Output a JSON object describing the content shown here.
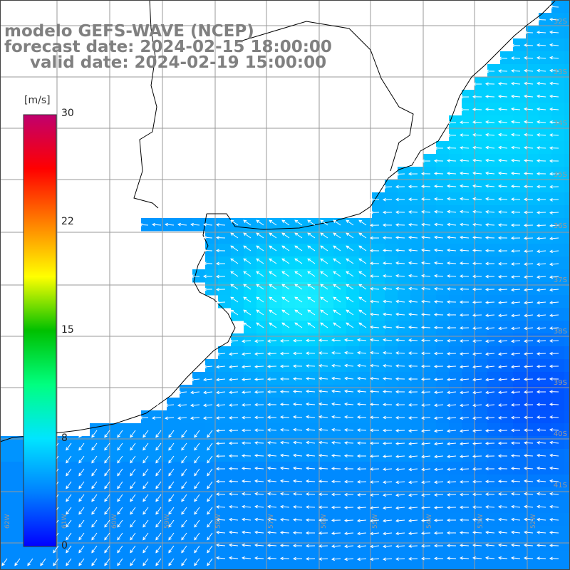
{
  "title": {
    "model": "modelo GEFS-WAVE (NCEP)",
    "forecast": "forecast date: 2024-02-15 18:00:00",
    "valid": "valid date: 2024-02-19 15:00:00"
  },
  "colorbar": {
    "unit": "[m/s]",
    "ticks": [
      "30",
      "22",
      "15",
      "8",
      "0"
    ],
    "colors": [
      "#0000ff",
      "#0080ff",
      "#00e5ff",
      "#00ff80",
      "#00c000",
      "#ffff00",
      "#ff8000",
      "#ff0000",
      "#c0006e"
    ]
  },
  "axes": {
    "lat_labels": [
      "32S",
      "33S",
      "34S",
      "35S",
      "36S",
      "37S",
      "38S",
      "39S",
      "40S",
      "41S"
    ],
    "lon_labels": [
      "62W",
      "61W",
      "60W",
      "59W",
      "58W",
      "57W",
      "56W",
      "55W",
      "54W",
      "53W",
      "52W"
    ]
  },
  "map": {
    "field": "wind speed",
    "ocean_color": "#1a8cff",
    "land_color": "#ffffff",
    "coast_color": "#000000",
    "grid_color": "#9a9a9a",
    "arrow_color": "#ffffff"
  }
}
